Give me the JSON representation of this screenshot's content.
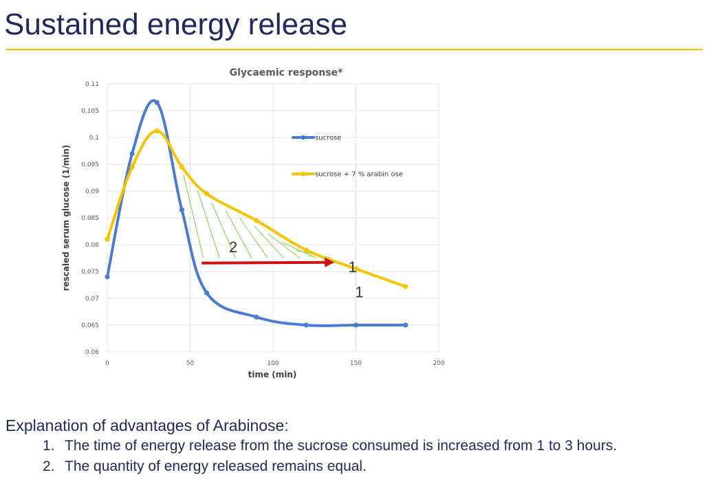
{
  "slide": {
    "title": "Sustained energy release",
    "accent_color": "#f2c500",
    "title_color": "#1f2a5a"
  },
  "chart_data": {
    "type": "line",
    "title": "Glycaemic response*",
    "xlabel": "time (min)",
    "ylabel": "rescaled serum glucose (1/min)",
    "xlim": [
      0,
      200
    ],
    "ylim": [
      0.06,
      0.11
    ],
    "x_ticks": [
      "0",
      "50",
      "100",
      "150",
      "200"
    ],
    "y_ticks": [
      "0.06",
      "0.065",
      "0.07",
      "0.075",
      "0.08",
      "0.085",
      "0.09",
      "0.095",
      "0.1",
      "0.105",
      "0.11"
    ],
    "grid": true,
    "legend_position": "top-right",
    "series": [
      {
        "name": "sucrose",
        "color": "#4a7bd0",
        "x": [
          0,
          15,
          30,
          45,
          60,
          90,
          120,
          150,
          180
        ],
        "y": [
          0.074,
          0.097,
          0.1065,
          0.0865,
          0.071,
          0.0665,
          0.065,
          0.065,
          0.065
        ]
      },
      {
        "name": "sucrose + 7 % arabin ose",
        "color": "#f5c400",
        "x": [
          0,
          15,
          30,
          45,
          60,
          90,
          120,
          150,
          180
        ],
        "y": [
          0.081,
          0.0945,
          0.1012,
          0.0945,
          0.0895,
          0.0845,
          0.079,
          0.0755,
          0.0722
        ]
      }
    ],
    "annotations": {
      "area_label": "2",
      "arrow_label_a": "1",
      "arrow_label_b": "1",
      "arrow_color": "#cc1111",
      "hatch_color": "#7fcf4a"
    }
  },
  "explanation": {
    "heading": "Explanation of advantages of Arabinose:",
    "items": [
      {
        "number": "1.",
        "text": "The time of energy release from the sucrose consumed is increased from 1 to 3 hours."
      },
      {
        "number": "2.",
        "text": "The quantity of energy released remains equal."
      }
    ]
  }
}
